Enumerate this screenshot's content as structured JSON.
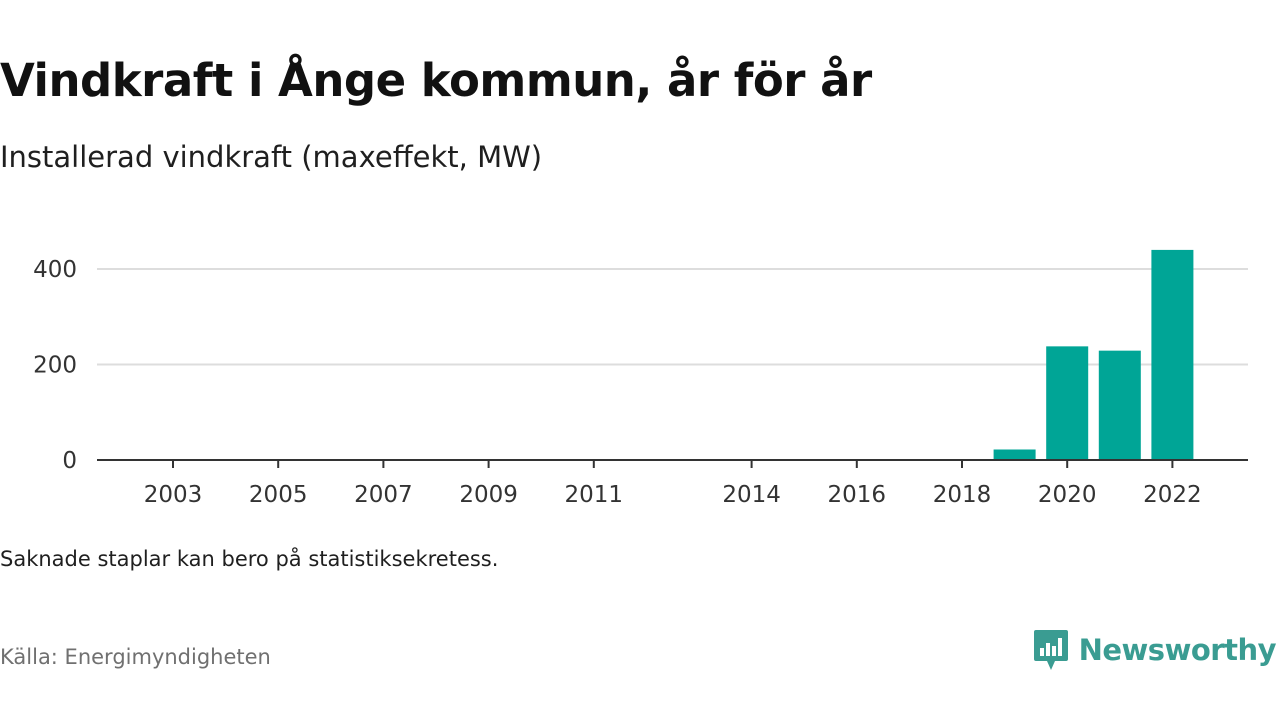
{
  "header": {
    "title": "Vindkraft i Ånge kommun, år för år",
    "subtitle": "Installerad vindkraft (maxeffekt, MW)"
  },
  "footer": {
    "note": "Saknade staplar kan bero på statistiksekretess.",
    "source": "Källa: Energimyndigheten",
    "brand": "Newsworthy",
    "brand_icon": "bar-chart-speech-bubble-icon"
  },
  "colors": {
    "bar": "#00a596",
    "brand": "#3a9c92",
    "grid": "#dddddd",
    "axis": "#333333"
  },
  "chart_data": {
    "type": "bar",
    "title": "Vindkraft i Ånge kommun, år för år",
    "subtitle": "Installerad vindkraft (maxeffekt, MW)",
    "xlabel": "",
    "ylabel": "",
    "x_range": [
      2002,
      2023
    ],
    "ylim": [
      0,
      460
    ],
    "y_ticks": [
      0,
      200,
      400
    ],
    "x_ticks": [
      2003,
      2005,
      2007,
      2009,
      2011,
      2014,
      2016,
      2018,
      2020,
      2022
    ],
    "grid": true,
    "series": [
      {
        "x": [
          2019,
          2020,
          2021,
          2022
        ],
        "values": [
          22,
          238,
          229,
          440
        ]
      }
    ]
  }
}
